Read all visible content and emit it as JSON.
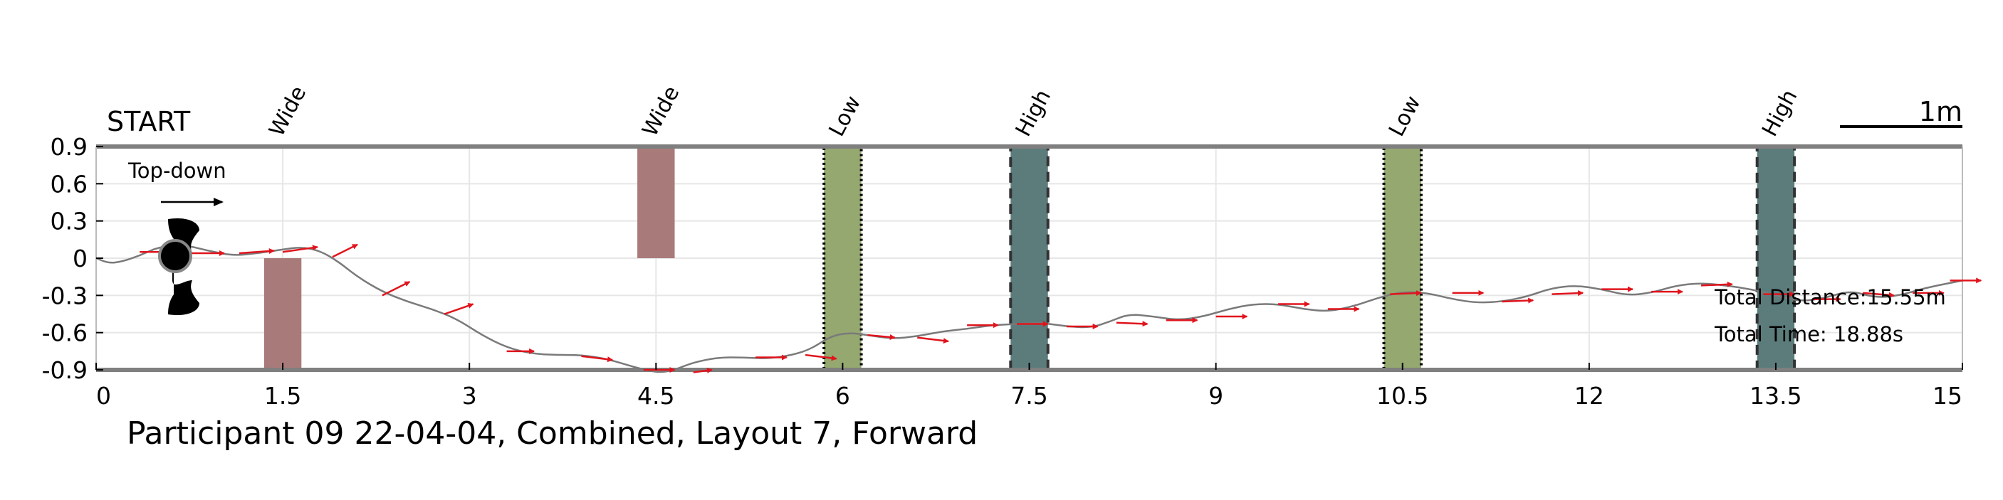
{
  "chart_data": {
    "type": "line",
    "title": "Participant 09 22-04-04, Combined, Layout 7, Forward",
    "xlabel": "",
    "ylabel": "",
    "xlim": [
      0,
      15
    ],
    "ylim": [
      -0.9,
      0.9
    ],
    "xticks": [
      "0",
      "1.5",
      "3",
      "4.5",
      "6",
      "7.5",
      "9",
      "10.5",
      "12",
      "13.5",
      "15"
    ],
    "yticks": [
      "0.9",
      "0.6",
      "0.3",
      "0",
      "-0.3",
      "-0.6",
      "-0.9"
    ],
    "grid": true,
    "start_label": "START",
    "scale_bar_label": "1m",
    "orientation_note": "Top-down",
    "stats": {
      "distance": "Total Distance:15.55m",
      "time": "Total Time: 18.88s"
    },
    "colors": {
      "path": "#7a7a7a",
      "arrows": "#e0141c",
      "wide": "#a97a7a",
      "low": "#94a870",
      "high": "#5c7c7c",
      "border": "#7f7f7f"
    },
    "obstacles": [
      {
        "label": "Wide",
        "type": "wide",
        "x": [
          1.35,
          1.65
        ],
        "y": [
          -0.9,
          0.0
        ]
      },
      {
        "label": "Wide",
        "type": "wide",
        "x": [
          4.35,
          4.65
        ],
        "y": [
          0.0,
          0.9
        ]
      },
      {
        "label": "Low",
        "type": "low",
        "x": [
          5.85,
          6.15
        ],
        "y": [
          -0.9,
          0.9
        ]
      },
      {
        "label": "High",
        "type": "high",
        "x": [
          7.35,
          7.65
        ],
        "y": [
          -0.9,
          0.9
        ]
      },
      {
        "label": "Low",
        "type": "low",
        "x": [
          10.35,
          10.65
        ],
        "y": [
          -0.9,
          0.9
        ]
      },
      {
        "label": "High",
        "type": "high",
        "x": [
          13.35,
          13.65
        ],
        "y": [
          -0.9,
          0.9
        ]
      }
    ],
    "series": [
      {
        "x": [
          0,
          0.1,
          0.2,
          0.35,
          0.5,
          0.7,
          0.9,
          1.1,
          1.3,
          1.5,
          1.65,
          1.8,
          1.95,
          2.1,
          2.3,
          2.5,
          2.7,
          2.9,
          3.1,
          3.3,
          3.5,
          3.7,
          3.9,
          4.1,
          4.3,
          4.45,
          4.55,
          4.65,
          4.8,
          5.0,
          5.2,
          5.4,
          5.6,
          5.75,
          5.9,
          6.05,
          6.2,
          6.4,
          6.6,
          6.8,
          7.0,
          7.2,
          7.4,
          7.6,
          7.8,
          8.0,
          8.15,
          8.3,
          8.5,
          8.7,
          8.9,
          9.1,
          9.3,
          9.5,
          9.7,
          9.9,
          10.1,
          10.3,
          10.5,
          10.7,
          10.9,
          11.1,
          11.3,
          11.5,
          11.7,
          11.9,
          12.1,
          12.3,
          12.5,
          12.7,
          12.9,
          13.1,
          13.3,
          13.5,
          13.7,
          13.9,
          14.1,
          14.3,
          14.5,
          14.7,
          14.9,
          15.0
        ],
        "y": [
          0.0,
          -0.04,
          -0.03,
          0.02,
          0.09,
          0.11,
          0.06,
          0.02,
          0.04,
          0.07,
          0.09,
          0.06,
          -0.03,
          -0.15,
          -0.27,
          -0.35,
          -0.41,
          -0.49,
          -0.62,
          -0.72,
          -0.77,
          -0.78,
          -0.78,
          -0.81,
          -0.87,
          -0.91,
          -0.92,
          -0.9,
          -0.84,
          -0.8,
          -0.8,
          -0.81,
          -0.78,
          -0.73,
          -0.63,
          -0.6,
          -0.62,
          -0.65,
          -0.63,
          -0.59,
          -0.57,
          -0.54,
          -0.53,
          -0.52,
          -0.55,
          -0.56,
          -0.51,
          -0.45,
          -0.47,
          -0.5,
          -0.47,
          -0.41,
          -0.37,
          -0.37,
          -0.41,
          -0.43,
          -0.39,
          -0.32,
          -0.27,
          -0.28,
          -0.33,
          -0.36,
          -0.35,
          -0.31,
          -0.24,
          -0.22,
          -0.25,
          -0.3,
          -0.28,
          -0.22,
          -0.2,
          -0.22,
          -0.25,
          -0.3,
          -0.35,
          -0.32,
          -0.26,
          -0.32,
          -0.3,
          -0.24,
          -0.2,
          -0.18
        ]
      }
    ],
    "heading_arrows": [
      {
        "x": 0.35,
        "y": 0.05,
        "dx": 0.28,
        "dy": 0.0
      },
      {
        "x": 0.75,
        "y": 0.04,
        "dx": 0.28,
        "dy": 0.0
      },
      {
        "x": 1.15,
        "y": 0.04,
        "dx": 0.28,
        "dy": 0.02
      },
      {
        "x": 1.5,
        "y": 0.05,
        "dx": 0.28,
        "dy": 0.04
      },
      {
        "x": 1.9,
        "y": 0.01,
        "dx": 0.2,
        "dy": 0.1
      },
      {
        "x": 2.3,
        "y": -0.3,
        "dx": 0.22,
        "dy": 0.11
      },
      {
        "x": 2.8,
        "y": -0.45,
        "dx": 0.23,
        "dy": 0.08
      },
      {
        "x": 3.3,
        "y": -0.75,
        "dx": 0.22,
        "dy": 0.0
      },
      {
        "x": 3.9,
        "y": -0.79,
        "dx": 0.25,
        "dy": -0.03
      },
      {
        "x": 4.4,
        "y": -0.9,
        "dx": 0.25,
        "dy": 0.0
      },
      {
        "x": 4.8,
        "y": -0.92,
        "dx": 0.15,
        "dy": 0.02
      },
      {
        "x": 5.3,
        "y": -0.8,
        "dx": 0.25,
        "dy": 0.0
      },
      {
        "x": 5.7,
        "y": -0.78,
        "dx": 0.25,
        "dy": -0.03
      },
      {
        "x": 6.2,
        "y": -0.62,
        "dx": 0.22,
        "dy": -0.02
      },
      {
        "x": 6.6,
        "y": -0.64,
        "dx": 0.25,
        "dy": -0.03
      },
      {
        "x": 7.0,
        "y": -0.54,
        "dx": 0.25,
        "dy": 0.0
      },
      {
        "x": 7.4,
        "y": -0.53,
        "dx": 0.25,
        "dy": 0.0
      },
      {
        "x": 7.8,
        "y": -0.55,
        "dx": 0.25,
        "dy": 0.0
      },
      {
        "x": 8.2,
        "y": -0.52,
        "dx": 0.25,
        "dy": -0.01
      },
      {
        "x": 8.6,
        "y": -0.5,
        "dx": 0.25,
        "dy": 0.0
      },
      {
        "x": 9.0,
        "y": -0.47,
        "dx": 0.25,
        "dy": 0.0
      },
      {
        "x": 9.5,
        "y": -0.37,
        "dx": 0.25,
        "dy": 0.0
      },
      {
        "x": 9.9,
        "y": -0.41,
        "dx": 0.25,
        "dy": 0.0
      },
      {
        "x": 10.4,
        "y": -0.29,
        "dx": 0.25,
        "dy": 0.01
      },
      {
        "x": 10.9,
        "y": -0.28,
        "dx": 0.25,
        "dy": 0.0
      },
      {
        "x": 11.3,
        "y": -0.35,
        "dx": 0.25,
        "dy": 0.01
      },
      {
        "x": 11.7,
        "y": -0.29,
        "dx": 0.25,
        "dy": 0.01
      },
      {
        "x": 12.1,
        "y": -0.25,
        "dx": 0.25,
        "dy": 0.0
      },
      {
        "x": 12.5,
        "y": -0.27,
        "dx": 0.25,
        "dy": 0.0
      },
      {
        "x": 12.9,
        "y": -0.22,
        "dx": 0.25,
        "dy": 0.01
      },
      {
        "x": 13.4,
        "y": -0.29,
        "dx": 0.25,
        "dy": 0.0
      },
      {
        "x": 13.8,
        "y": -0.33,
        "dx": 0.22,
        "dy": 0.0
      },
      {
        "x": 14.2,
        "y": -0.28,
        "dx": 0.25,
        "dy": -0.02
      },
      {
        "x": 14.6,
        "y": -0.28,
        "dx": 0.25,
        "dy": 0.0
      },
      {
        "x": 14.9,
        "y": -0.18,
        "dx": 0.25,
        "dy": 0.0
      }
    ]
  }
}
